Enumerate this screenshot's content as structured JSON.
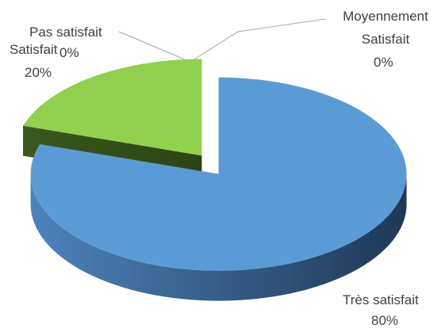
{
  "chart_data": {
    "type": "pie",
    "categories": [
      "Très satisfait",
      "Satisfait",
      "Pas satisfait",
      "Moyennement Satisfait"
    ],
    "values": [
      80,
      20,
      0,
      0
    ],
    "value_labels": [
      "80%",
      "20%",
      "0%",
      "0%"
    ],
    "colors": [
      "#5b9bd5",
      "#92d050",
      null,
      null
    ]
  }
}
